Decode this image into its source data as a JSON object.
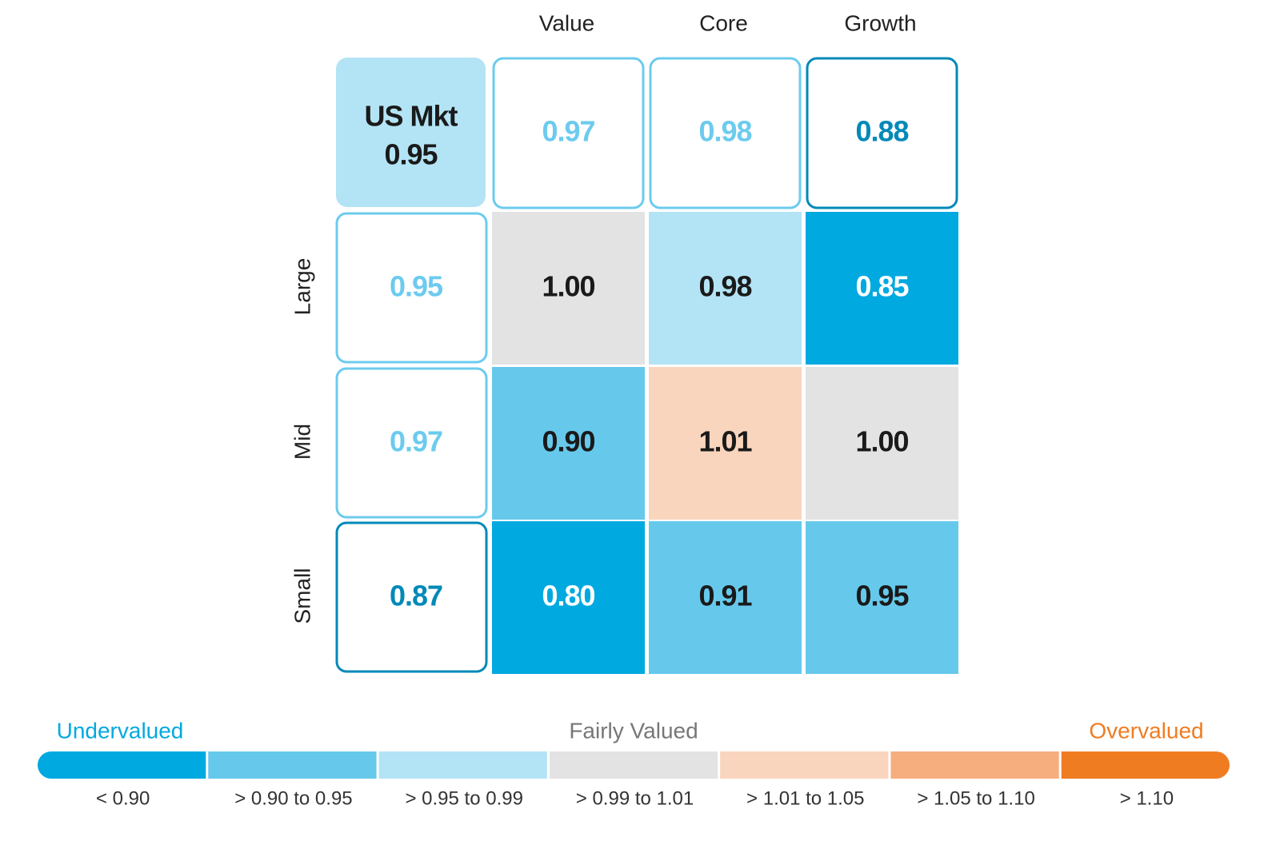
{
  "chart_data": {
    "type": "heatmap",
    "columns": [
      "Value",
      "Core",
      "Growth"
    ],
    "rows": [
      "Large",
      "Mid",
      "Small"
    ],
    "market": {
      "label": "US Mkt",
      "value": 0.95,
      "color": "#b3e4f5"
    },
    "column_totals": {
      "values": [
        0.97,
        0.98,
        0.88
      ],
      "colors": [
        "#6ccbee",
        "#6ccbee",
        "#0089b8"
      ]
    },
    "row_totals": {
      "values": [
        0.95,
        0.97,
        0.87
      ],
      "colors": [
        "#6ccbee",
        "#6ccbee",
        "#0089b8"
      ]
    },
    "values": [
      [
        1,
        0.98,
        0.85
      ],
      [
        0.9,
        1.01,
        1
      ],
      [
        0.8,
        0.91,
        0.95
      ]
    ],
    "value_labels": [
      [
        "1.00",
        "0.98",
        "0.85"
      ],
      [
        "0.90",
        "1.01",
        "1.00"
      ],
      [
        "0.80",
        "0.91",
        "0.95"
      ]
    ],
    "colors": [
      [
        "#e3e3e3",
        "#b3e4f5",
        "#00a9e0"
      ],
      [
        "#66c9ec",
        "#f9d5bd",
        "#e3e3e3"
      ],
      [
        "#00a9e0",
        "#66c9ec",
        "#66c9ec"
      ]
    ],
    "label_colors": [
      [
        "#1a1a1a",
        "#1a1a1a",
        "#ffffff"
      ],
      [
        "#1a1a1a",
        "#1a1a1a",
        "#1a1a1a"
      ],
      [
        "#ffffff",
        "#1a1a1a",
        "#1a1a1a"
      ]
    ],
    "legend": {
      "titles": [
        {
          "text": "Undervalued",
          "color": "#00a9e0"
        },
        {
          "text": "Fairly Valued",
          "color": "#777777"
        },
        {
          "text": "Overvalued",
          "color": "#f07c22"
        }
      ],
      "items": [
        {
          "label": "< 0.90",
          "color": "#00a9e0"
        },
        {
          "label": "> 0.90 to 0.95",
          "color": "#66c9ec"
        },
        {
          "label": "> 0.95 to 0.99",
          "color": "#b3e4f5"
        },
        {
          "label": "> 0.99 to 1.01",
          "color": "#e3e3e3"
        },
        {
          "label": "> 1.01 to 1.05",
          "color": "#f9d5bd"
        },
        {
          "label": "> 1.05 to 1.10",
          "color": "#f6ae7f"
        },
        {
          "label": "> 1.10",
          "color": "#f07c22"
        }
      ]
    }
  }
}
